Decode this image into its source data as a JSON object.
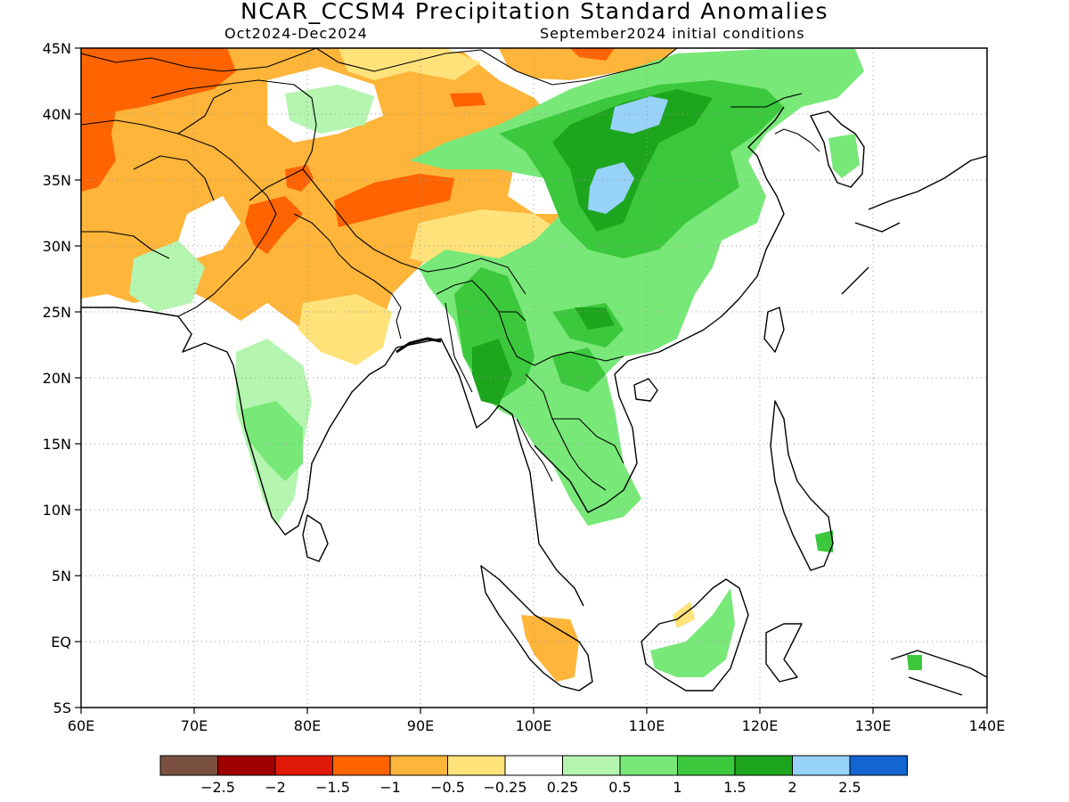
{
  "title": "NCAR_CCSM4 Precipitation Standard Anomalies",
  "subtitle_left": "Oct2024-Dec2024",
  "subtitle_right": "September2024 initial conditions",
  "map": {
    "lon_range": [
      60,
      140
    ],
    "lat_range": [
      -5,
      45
    ],
    "lon_ticks": [
      "60E",
      "70E",
      "80E",
      "90E",
      "100E",
      "110E",
      "120E",
      "130E",
      "140E"
    ],
    "lat_ticks": [
      "45N",
      "40N",
      "35N",
      "30N",
      "25N",
      "20N",
      "15N",
      "10N",
      "5N",
      "EQ",
      "5S"
    ],
    "gridlines": "dotted"
  },
  "colorbar": {
    "colors": [
      "#7a5040",
      "#a00000",
      "#e01808",
      "#ff6400",
      "#ffb43a",
      "#ffe27a",
      "#ffffff",
      "#b4f5b0",
      "#78e878",
      "#3cc83c",
      "#1ea51e",
      "#96d2fa",
      "#1464d2"
    ],
    "labels": [
      "-2.5",
      "-2",
      "-1.5",
      "-1",
      "-0.5",
      "-0.25",
      "0.25",
      "0.5",
      "1",
      "1.5",
      "2",
      "2.5"
    ]
  }
}
